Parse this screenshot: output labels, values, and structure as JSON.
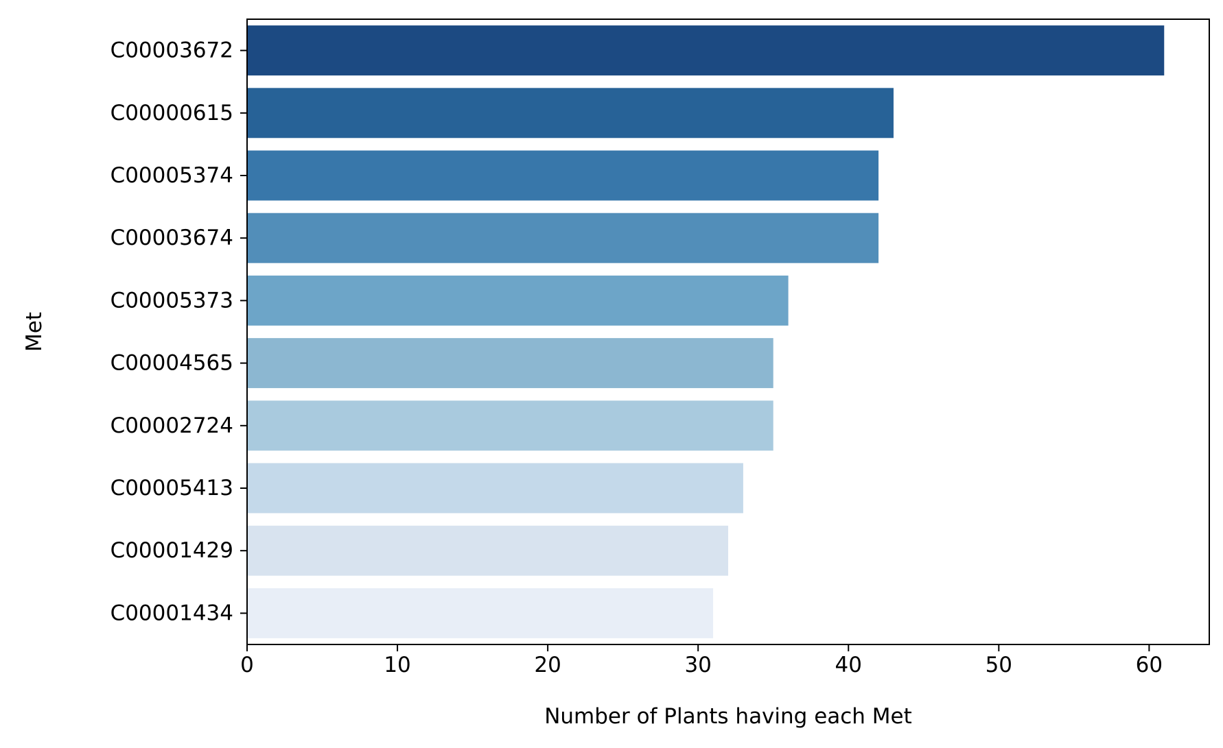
{
  "chart_data": {
    "type": "bar",
    "orientation": "horizontal",
    "categories": [
      "C00003672",
      "C00000615",
      "C00005374",
      "C00003674",
      "C00005373",
      "C00004565",
      "C00002724",
      "C00005413",
      "C00001429",
      "C00001434"
    ],
    "values": [
      61,
      43,
      42,
      42,
      36,
      35,
      35,
      33,
      32,
      31
    ],
    "colors": [
      "#1c4a82",
      "#276297",
      "#3877aa",
      "#528eb9",
      "#6da5c8",
      "#8cb7d1",
      "#a9cade",
      "#c4d9ea",
      "#d8e3ef",
      "#e8eef7"
    ],
    "xlabel": "Number of Plants having each Met",
    "ylabel": "Met",
    "xlim": [
      0,
      64
    ],
    "xticks": [
      0,
      10,
      20,
      30,
      40,
      50,
      60
    ],
    "grid": false
  }
}
